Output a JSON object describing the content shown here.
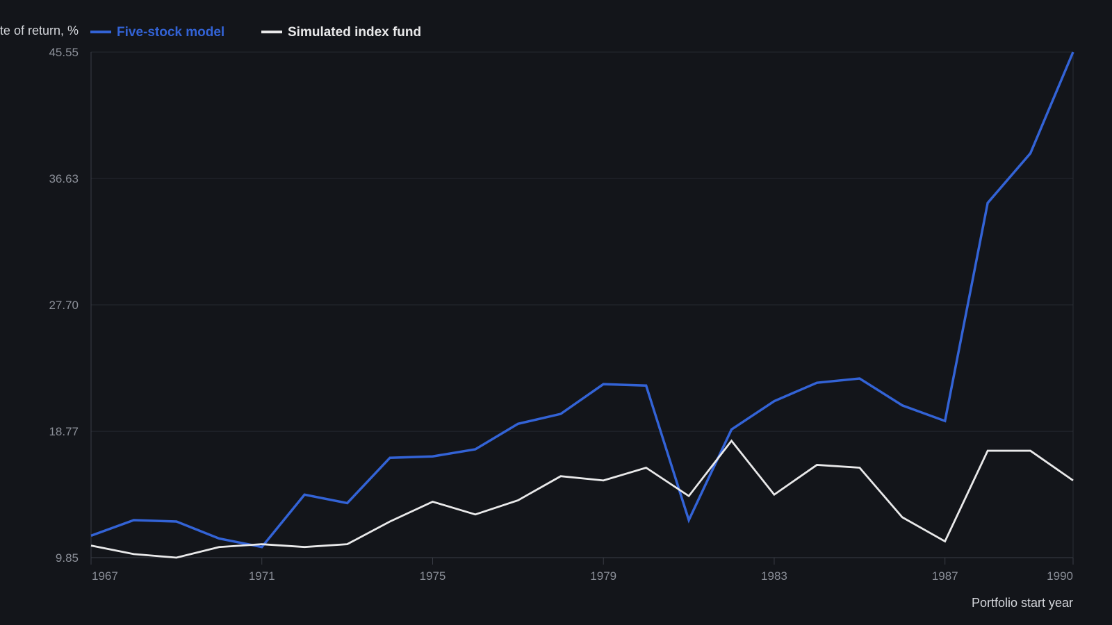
{
  "chart_data": {
    "type": "line",
    "title": "",
    "ylabel": "Rate of return, %",
    "xlabel": "Portfolio start year",
    "ylim": [
      9.85,
      45.55
    ],
    "y_ticks": [
      "9.85",
      "18.77",
      "27.70",
      "36.63",
      "45.55"
    ],
    "x_range": [
      1967,
      1990
    ],
    "x_ticks": [
      "1967",
      "1971",
      "1975",
      "1979",
      "1983",
      "1987",
      "1990"
    ],
    "grid": "horizontal",
    "legend_placement": "top-left",
    "x": [
      1967,
      1968,
      1969,
      1970,
      1971,
      1972,
      1973,
      1974,
      1975,
      1976,
      1977,
      1978,
      1979,
      1980,
      1981,
      1982,
      1983,
      1984,
      1985,
      1986,
      1987,
      1988,
      1989,
      1990
    ],
    "series": [
      {
        "name": "Five-stock model",
        "color": "#3363d6",
        "values": [
          11.4,
          12.5,
          12.4,
          11.2,
          10.6,
          14.3,
          13.7,
          16.9,
          17.0,
          17.5,
          19.3,
          20.0,
          22.1,
          22.0,
          12.5,
          18.9,
          20.9,
          22.2,
          22.5,
          20.6,
          19.5,
          34.9,
          38.4,
          45.55
        ]
      },
      {
        "name": "Simulated index fund",
        "color": "#e9e9ea",
        "values": [
          10.7,
          10.1,
          9.85,
          10.6,
          10.8,
          10.6,
          10.8,
          12.4,
          13.8,
          12.9,
          13.9,
          15.6,
          15.3,
          16.2,
          14.2,
          18.1,
          14.3,
          16.4,
          16.2,
          12.7,
          11.0,
          17.4,
          17.4,
          15.3
        ]
      }
    ]
  }
}
